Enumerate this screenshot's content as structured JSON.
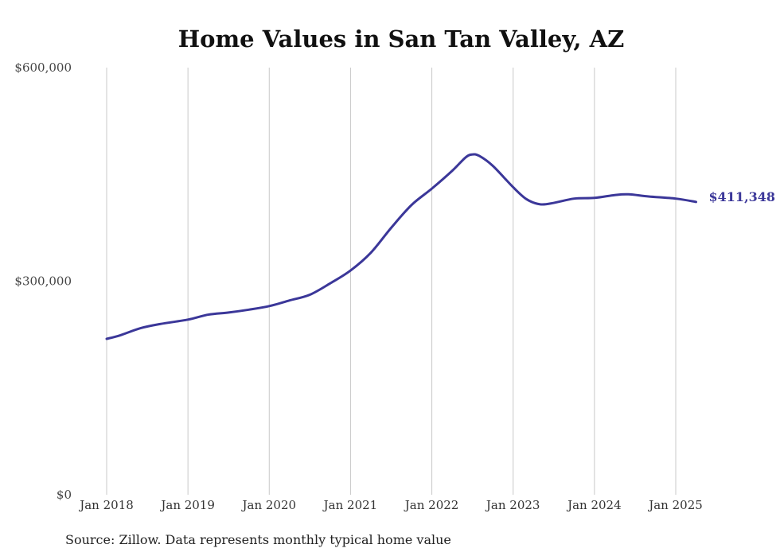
{
  "chart_data": {
    "type": "line",
    "title": "Home Values in San Tan Valley, AZ",
    "xlabel": "",
    "ylabel": "",
    "ylim": [
      0,
      600000
    ],
    "xlim": [
      "2018-01",
      "2025-04"
    ],
    "y_ticks": [
      {
        "value": 0,
        "label": "$0"
      },
      {
        "value": 300000,
        "label": "$300,000"
      },
      {
        "value": 600000,
        "label": "$600,000"
      }
    ],
    "x_ticks": [
      {
        "value": "2018-01",
        "label": "Jan 2018"
      },
      {
        "value": "2019-01",
        "label": "Jan 2019"
      },
      {
        "value": "2020-01",
        "label": "Jan 2020"
      },
      {
        "value": "2021-01",
        "label": "Jan 2021"
      },
      {
        "value": "2022-01",
        "label": "Jan 2022"
      },
      {
        "value": "2023-01",
        "label": "Jan 2023"
      },
      {
        "value": "2024-01",
        "label": "Jan 2024"
      },
      {
        "value": "2025-01",
        "label": "Jan 2025"
      }
    ],
    "grid": "vertical",
    "color": "#3b3799",
    "end_label": "$411,348",
    "series": [
      {
        "points": [
          {
            "x": "2018-01",
            "y": 219000
          },
          {
            "x": "2018-03",
            "y": 224000
          },
          {
            "x": "2018-06",
            "y": 234000
          },
          {
            "x": "2018-09",
            "y": 240000
          },
          {
            "x": "2019-01",
            "y": 246000
          },
          {
            "x": "2019-04",
            "y": 253000
          },
          {
            "x": "2019-07",
            "y": 256000
          },
          {
            "x": "2019-10",
            "y": 260000
          },
          {
            "x": "2020-01",
            "y": 265000
          },
          {
            "x": "2020-04",
            "y": 273000
          },
          {
            "x": "2020-07",
            "y": 281000
          },
          {
            "x": "2020-10",
            "y": 297000
          },
          {
            "x": "2021-01",
            "y": 315000
          },
          {
            "x": "2021-04",
            "y": 340000
          },
          {
            "x": "2021-07",
            "y": 375000
          },
          {
            "x": "2021-10",
            "y": 407000
          },
          {
            "x": "2022-01",
            "y": 430000
          },
          {
            "x": "2022-04",
            "y": 455000
          },
          {
            "x": "2022-06",
            "y": 474000
          },
          {
            "x": "2022-07",
            "y": 478000
          },
          {
            "x": "2022-08",
            "y": 476000
          },
          {
            "x": "2022-10",
            "y": 462000
          },
          {
            "x": "2023-01",
            "y": 432000
          },
          {
            "x": "2023-03",
            "y": 415000
          },
          {
            "x": "2023-05",
            "y": 408000
          },
          {
            "x": "2023-07",
            "y": 410000
          },
          {
            "x": "2023-10",
            "y": 416000
          },
          {
            "x": "2024-01",
            "y": 417000
          },
          {
            "x": "2024-04",
            "y": 421000
          },
          {
            "x": "2024-06",
            "y": 422000
          },
          {
            "x": "2024-09",
            "y": 419000
          },
          {
            "x": "2025-01",
            "y": 416000
          },
          {
            "x": "2025-04",
            "y": 411348
          }
        ]
      }
    ]
  },
  "footer": {
    "source": "Source: Zillow. Data represents monthly typical home value"
  }
}
